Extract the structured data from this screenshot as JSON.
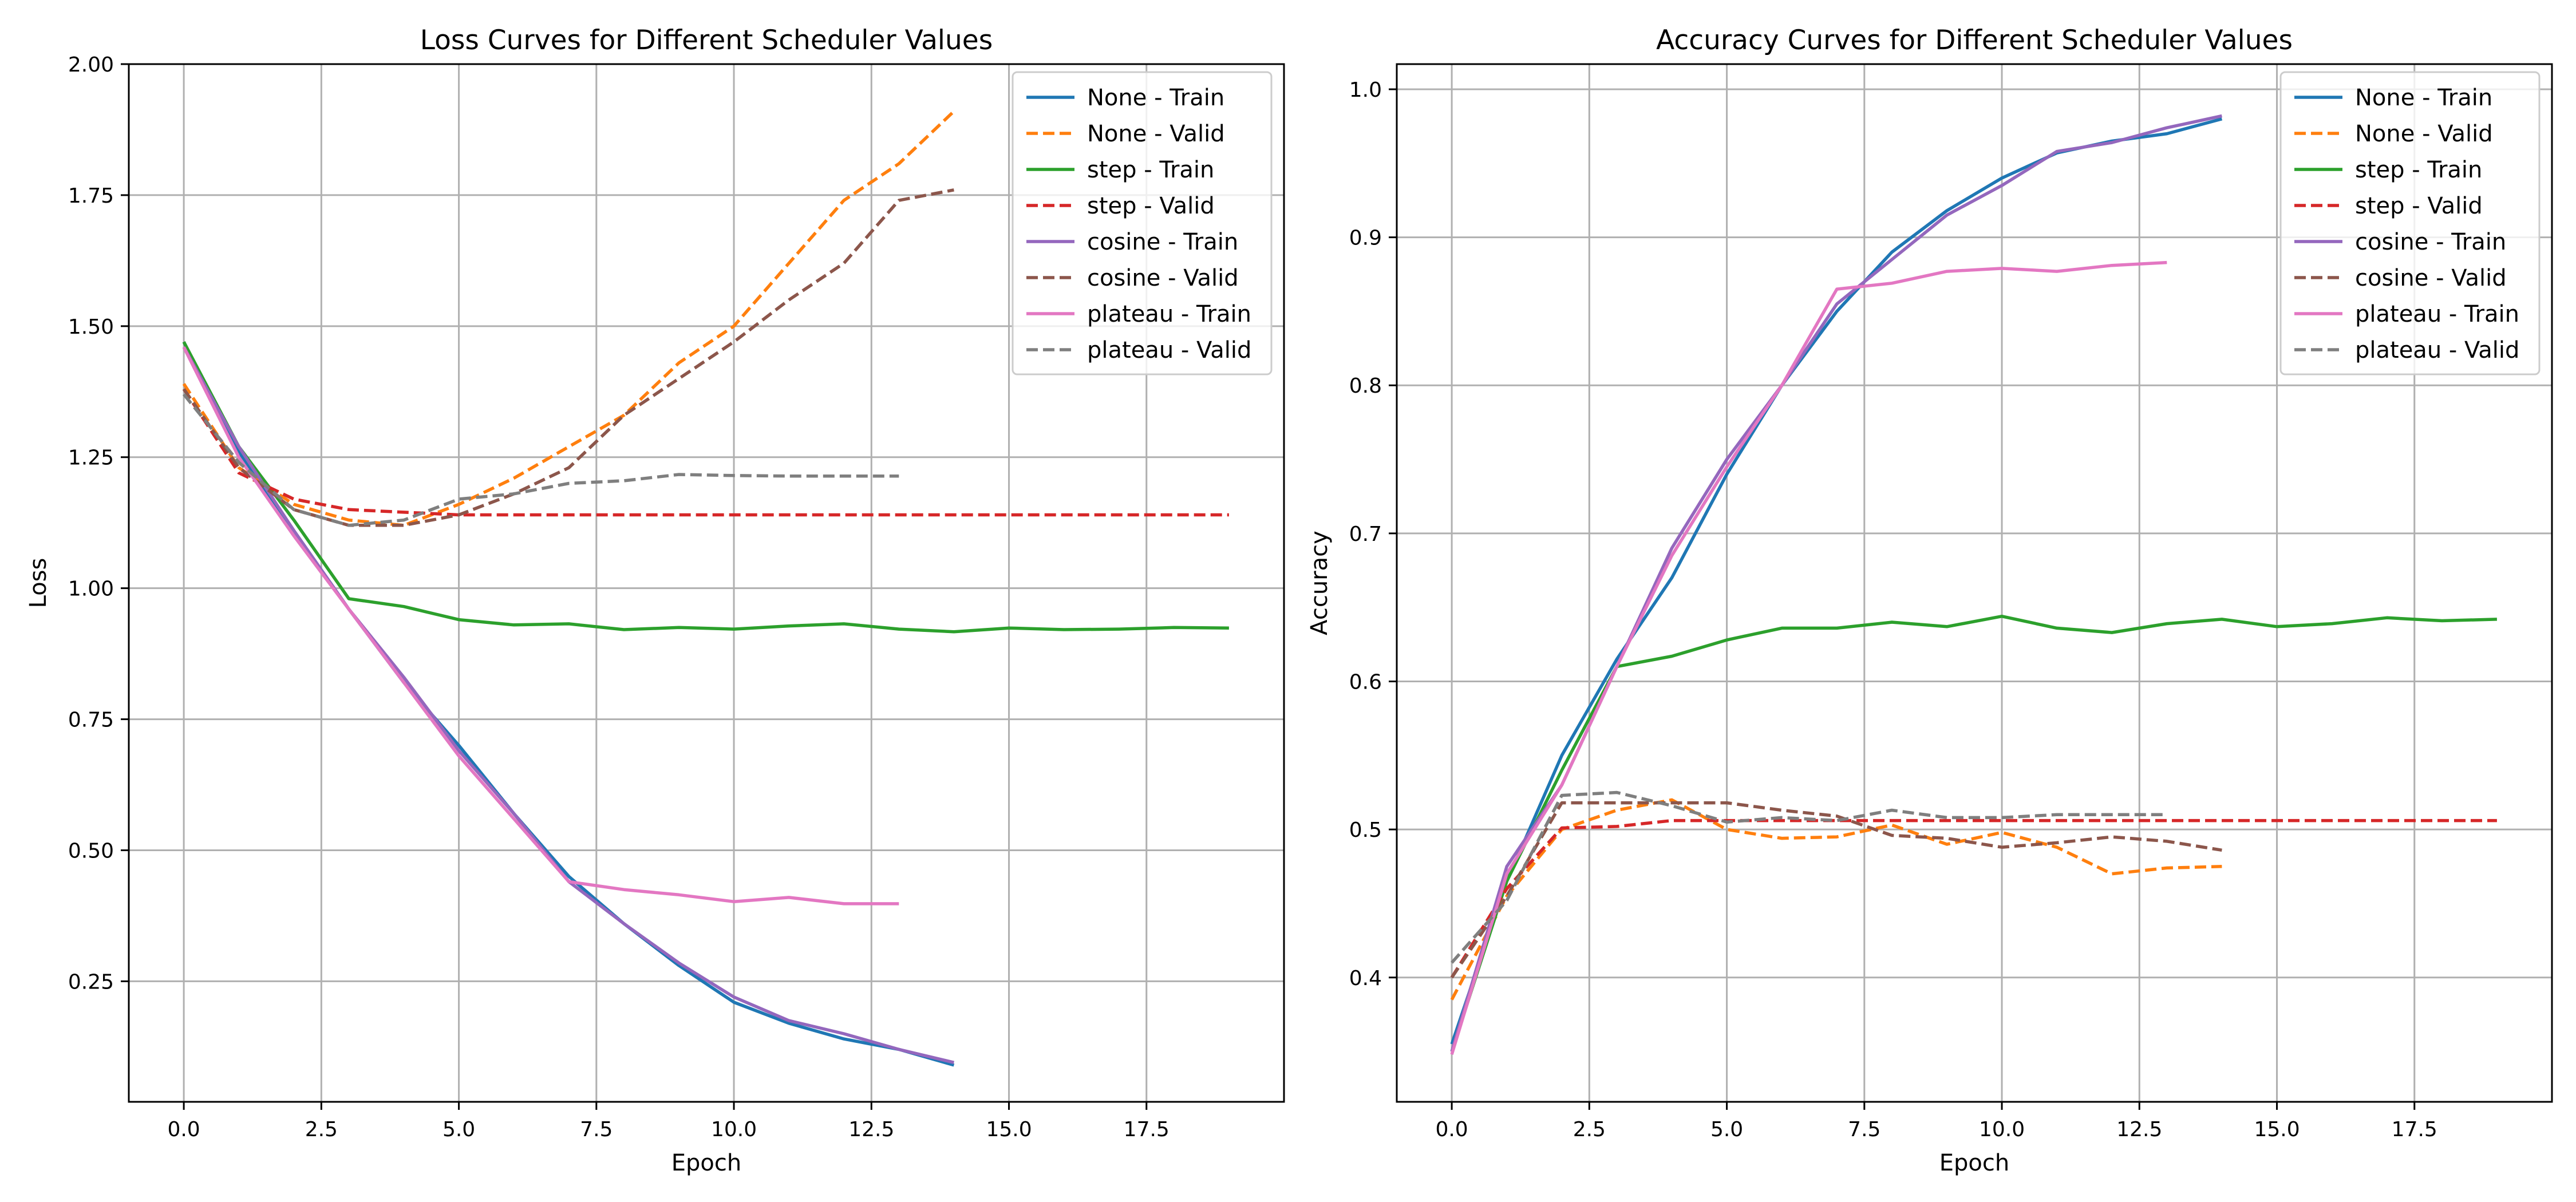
{
  "figure": {
    "background": "#ffffff"
  },
  "chart_data": [
    {
      "type": "line",
      "title": "Loss Curves for Different Scheduler Values",
      "xlabel": "Epoch",
      "ylabel": "Loss",
      "xlim": [
        -1,
        20
      ],
      "ylim": [
        0.02,
        2.0
      ],
      "xticks": [
        0.0,
        2.5,
        5.0,
        7.5,
        10.0,
        12.5,
        15.0,
        17.5
      ],
      "xtick_labels": [
        "0.0",
        "2.5",
        "5.0",
        "7.5",
        "10.0",
        "12.5",
        "15.0",
        "17.5"
      ],
      "yticks": [
        0.25,
        0.5,
        0.75,
        1.0,
        1.25,
        1.5,
        1.75,
        2.0
      ],
      "ytick_labels": [
        "0.25",
        "0.50",
        "0.75",
        "1.00",
        "1.25",
        "1.50",
        "1.75",
        "2.00"
      ],
      "grid": true,
      "legend": "top-right",
      "series": [
        {
          "name": "None - Train",
          "color": "#1f77b4",
          "dash": "solid",
          "x": [
            0,
            1,
            2,
            3,
            4,
            5,
            6,
            7,
            8,
            9,
            10,
            11,
            12,
            13,
            14
          ],
          "values": [
            1.47,
            1.26,
            1.11,
            0.96,
            0.82,
            0.7,
            0.57,
            0.45,
            0.36,
            0.28,
            0.21,
            0.17,
            0.14,
            0.12,
            0.09
          ]
        },
        {
          "name": "None - Valid",
          "color": "#ff7f0e",
          "dash": "dashed",
          "x": [
            0,
            1,
            2,
            3,
            4,
            5,
            6,
            7,
            8,
            9,
            10,
            11,
            12,
            13,
            14
          ],
          "values": [
            1.39,
            1.23,
            1.16,
            1.13,
            1.12,
            1.16,
            1.21,
            1.27,
            1.33,
            1.43,
            1.5,
            1.62,
            1.74,
            1.81,
            1.91
          ]
        },
        {
          "name": "step - Train",
          "color": "#2ca02c",
          "dash": "solid",
          "x": [
            0,
            1,
            2,
            3,
            4,
            5,
            6,
            7,
            8,
            9,
            10,
            11,
            12,
            13,
            14,
            15,
            16,
            17,
            18,
            19
          ],
          "values": [
            1.47,
            1.27,
            1.13,
            0.98,
            0.965,
            0.94,
            0.93,
            0.932,
            0.921,
            0.925,
            0.922,
            0.928,
            0.932,
            0.922,
            0.917,
            0.924,
            0.921,
            0.922,
            0.925,
            0.924
          ]
        },
        {
          "name": "step - Valid",
          "color": "#d62728",
          "dash": "dashed",
          "x": [
            0,
            1,
            2,
            3,
            4,
            5,
            6,
            7,
            8,
            9,
            10,
            11,
            12,
            13,
            14,
            15,
            16,
            17,
            18,
            19
          ],
          "values": [
            1.38,
            1.22,
            1.17,
            1.15,
            1.145,
            1.14,
            1.14,
            1.14,
            1.14,
            1.14,
            1.14,
            1.14,
            1.14,
            1.14,
            1.14,
            1.14,
            1.14,
            1.14,
            1.14,
            1.14
          ]
        },
        {
          "name": "cosine - Train",
          "color": "#9467bd",
          "dash": "solid",
          "x": [
            0,
            1,
            2,
            3,
            4,
            5,
            6,
            7,
            8,
            9,
            10,
            11,
            12,
            13,
            14
          ],
          "values": [
            1.46,
            1.27,
            1.11,
            0.96,
            0.83,
            0.69,
            0.57,
            0.44,
            0.36,
            0.285,
            0.22,
            0.175,
            0.15,
            0.12,
            0.095
          ]
        },
        {
          "name": "cosine - Valid",
          "color": "#8c564b",
          "dash": "dashed",
          "x": [
            0,
            1,
            2,
            3,
            4,
            5,
            6,
            7,
            8,
            9,
            10,
            11,
            12,
            13,
            14
          ],
          "values": [
            1.38,
            1.23,
            1.15,
            1.12,
            1.12,
            1.14,
            1.18,
            1.23,
            1.33,
            1.4,
            1.47,
            1.55,
            1.62,
            1.74,
            1.76
          ]
        },
        {
          "name": "plateau - Train",
          "color": "#e377c2",
          "dash": "solid",
          "x": [
            0,
            1,
            2,
            3,
            4,
            5,
            6,
            7,
            8,
            9,
            10,
            11,
            12,
            13
          ],
          "values": [
            1.46,
            1.25,
            1.1,
            0.96,
            0.82,
            0.68,
            0.56,
            0.44,
            0.425,
            0.415,
            0.402,
            0.41,
            0.398,
            0.398
          ]
        },
        {
          "name": "plateau - Valid",
          "color": "#7f7f7f",
          "dash": "dashed",
          "x": [
            0,
            1,
            2,
            3,
            4,
            5,
            6,
            7,
            8,
            9,
            10,
            11,
            12,
            13
          ],
          "values": [
            1.37,
            1.24,
            1.15,
            1.12,
            1.13,
            1.17,
            1.18,
            1.2,
            1.205,
            1.217,
            1.215,
            1.214,
            1.214,
            1.214
          ]
        }
      ]
    },
    {
      "type": "line",
      "title": "Accuracy Curves for Different Scheduler Values",
      "xlabel": "Epoch",
      "ylabel": "Accuracy",
      "xlim": [
        -1,
        20
      ],
      "ylim": [
        0.316,
        1.017
      ],
      "xticks": [
        0.0,
        2.5,
        5.0,
        7.5,
        10.0,
        12.5,
        15.0,
        17.5
      ],
      "xtick_labels": [
        "0.0",
        "2.5",
        "5.0",
        "7.5",
        "10.0",
        "12.5",
        "15.0",
        "17.5"
      ],
      "yticks": [
        0.4,
        0.5,
        0.6,
        0.7,
        0.8,
        0.9,
        1.0
      ],
      "ytick_labels": [
        "0.4",
        "0.5",
        "0.6",
        "0.7",
        "0.8",
        "0.9",
        "1.0"
      ],
      "grid": true,
      "legend": "top-right",
      "series": [
        {
          "name": "None - Train",
          "color": "#1f77b4",
          "dash": "solid",
          "x": [
            0,
            1,
            2,
            3,
            4,
            5,
            6,
            7,
            8,
            9,
            10,
            11,
            12,
            13,
            14
          ],
          "values": [
            0.355,
            0.465,
            0.55,
            0.615,
            0.67,
            0.74,
            0.8,
            0.85,
            0.89,
            0.918,
            0.94,
            0.957,
            0.965,
            0.97,
            0.98
          ]
        },
        {
          "name": "None - Valid",
          "color": "#ff7f0e",
          "dash": "dashed",
          "x": [
            0,
            1,
            2,
            3,
            4,
            5,
            6,
            7,
            8,
            9,
            10,
            11,
            12,
            13,
            14
          ],
          "values": [
            0.385,
            0.455,
            0.5,
            0.513,
            0.52,
            0.5,
            0.494,
            0.495,
            0.503,
            0.49,
            0.498,
            0.488,
            0.47,
            0.474,
            0.475
          ]
        },
        {
          "name": "step - Train",
          "color": "#2ca02c",
          "dash": "solid",
          "x": [
            0,
            1,
            2,
            3,
            4,
            5,
            6,
            7,
            8,
            9,
            10,
            11,
            12,
            13,
            14,
            15,
            16,
            17,
            18,
            19
          ],
          "values": [
            0.35,
            0.465,
            0.54,
            0.61,
            0.617,
            0.628,
            0.636,
            0.636,
            0.64,
            0.637,
            0.644,
            0.636,
            0.633,
            0.639,
            0.642,
            0.637,
            0.639,
            0.643,
            0.641,
            0.642
          ]
        },
        {
          "name": "step - Valid",
          "color": "#d62728",
          "dash": "dashed",
          "x": [
            0,
            1,
            2,
            3,
            4,
            5,
            6,
            7,
            8,
            9,
            10,
            11,
            12,
            13,
            14,
            15,
            16,
            17,
            18,
            19
          ],
          "values": [
            0.4,
            0.46,
            0.501,
            0.502,
            0.506,
            0.506,
            0.506,
            0.506,
            0.506,
            0.506,
            0.506,
            0.506,
            0.506,
            0.506,
            0.506,
            0.506,
            0.506,
            0.506,
            0.506,
            0.506
          ]
        },
        {
          "name": "cosine - Train",
          "color": "#9467bd",
          "dash": "solid",
          "x": [
            0,
            1,
            2,
            3,
            4,
            5,
            6,
            7,
            8,
            9,
            10,
            11,
            12,
            13,
            14
          ],
          "values": [
            0.35,
            0.475,
            0.53,
            0.61,
            0.69,
            0.75,
            0.8,
            0.855,
            0.885,
            0.915,
            0.935,
            0.958,
            0.964,
            0.974,
            0.982
          ]
        },
        {
          "name": "cosine - Valid",
          "color": "#8c564b",
          "dash": "dashed",
          "x": [
            0,
            1,
            2,
            3,
            4,
            5,
            6,
            7,
            8,
            9,
            10,
            11,
            12,
            13,
            14
          ],
          "values": [
            0.4,
            0.455,
            0.518,
            0.518,
            0.518,
            0.518,
            0.513,
            0.509,
            0.496,
            0.494,
            0.488,
            0.491,
            0.495,
            0.492,
            0.486
          ]
        },
        {
          "name": "plateau - Train",
          "color": "#e377c2",
          "dash": "solid",
          "x": [
            0,
            1,
            2,
            3,
            4,
            5,
            6,
            7,
            8,
            9,
            10,
            11,
            12,
            13
          ],
          "values": [
            0.348,
            0.47,
            0.53,
            0.61,
            0.685,
            0.745,
            0.8,
            0.865,
            0.869,
            0.877,
            0.879,
            0.877,
            0.881,
            0.883
          ]
        },
        {
          "name": "plateau - Valid",
          "color": "#7f7f7f",
          "dash": "dashed",
          "x": [
            0,
            1,
            2,
            3,
            4,
            5,
            6,
            7,
            8,
            9,
            10,
            11,
            12,
            13
          ],
          "values": [
            0.41,
            0.452,
            0.523,
            0.525,
            0.516,
            0.505,
            0.508,
            0.506,
            0.513,
            0.508,
            0.508,
            0.51,
            0.51,
            0.51
          ]
        }
      ]
    }
  ]
}
